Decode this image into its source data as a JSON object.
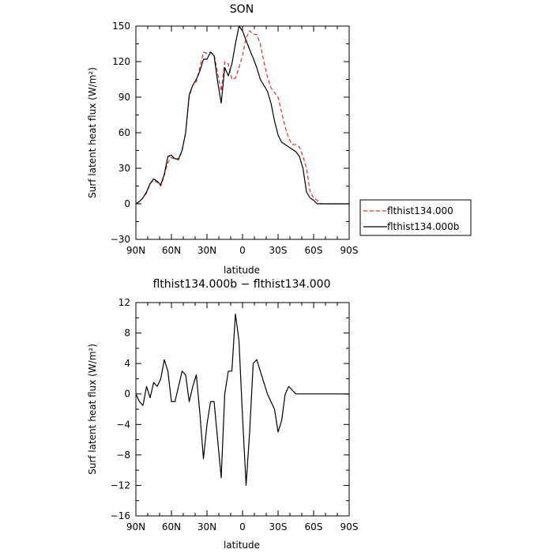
{
  "chart_data": [
    {
      "type": "line",
      "title": "SON",
      "xlabel": "latitude",
      "ylabel": "Surf latent heat flux (W/m²)",
      "xlim": [
        90,
        -90
      ],
      "ylim": [
        -30,
        150
      ],
      "x_ticks": [
        90,
        60,
        30,
        0,
        -30,
        -60,
        -90
      ],
      "x_tick_labels": [
        "90N",
        "60N",
        "30N",
        "0",
        "30S",
        "60S",
        "90S"
      ],
      "y_ticks": [
        -30,
        0,
        30,
        60,
        90,
        120,
        150
      ],
      "y_tick_labels": [
        "−30",
        "0",
        "30",
        "60",
        "90",
        "120",
        "150"
      ],
      "legend_position": "right",
      "colors": {
        "flthist134.000": "#e03030",
        "flthist134.000b": "#000000"
      },
      "series": [
        {
          "name": "flthist134.000",
          "style": "dashed",
          "x": [
            90,
            87,
            84,
            81,
            78,
            75,
            72,
            69,
            66,
            63,
            60,
            57,
            54,
            51,
            48,
            45,
            42,
            39,
            36,
            33,
            30,
            27,
            24,
            21,
            18,
            15,
            12,
            9,
            6,
            3,
            0,
            -3,
            -6,
            -9,
            -12,
            -15,
            -18,
            -21,
            -24,
            -27,
            -30,
            -33,
            -36,
            -39,
            -42,
            -45,
            -48,
            -51,
            -54,
            -57,
            -60,
            -63,
            -66,
            -69,
            -72,
            -75,
            -78,
            -81,
            -84,
            -87,
            -90
          ],
          "values": [
            0,
            2,
            5,
            9,
            17,
            20,
            18,
            15,
            24,
            35,
            39,
            38,
            37,
            45,
            60,
            90,
            100,
            103,
            115,
            128,
            127,
            128,
            126,
            110,
            95,
            120,
            118,
            105,
            106,
            115,
            125,
            140,
            146,
            143,
            143,
            135,
            120,
            107,
            98,
            94,
            90,
            77,
            65,
            55,
            50,
            50,
            48,
            40,
            30,
            10,
            5,
            3,
            0,
            0,
            0,
            0,
            0,
            0,
            0,
            0,
            0
          ]
        },
        {
          "name": "flthist134.000b",
          "style": "solid",
          "x": [
            90,
            87,
            84,
            81,
            78,
            75,
            72,
            69,
            66,
            63,
            60,
            57,
            54,
            51,
            48,
            45,
            42,
            39,
            36,
            33,
            30,
            27,
            24,
            21,
            18,
            15,
            12,
            9,
            6,
            3,
            0,
            -3,
            -6,
            -9,
            -12,
            -15,
            -18,
            -21,
            -24,
            -27,
            -30,
            -33,
            -36,
            -39,
            -42,
            -45,
            -48,
            -51,
            -54,
            -57,
            -60,
            -63,
            -66,
            -69,
            -72,
            -75,
            -78,
            -81,
            -84,
            -87,
            -90
          ],
          "values": [
            0,
            2,
            5,
            10,
            17,
            21,
            19,
            16,
            25,
            40,
            41,
            38,
            38,
            45,
            60,
            92,
            100,
            105,
            112,
            122,
            122,
            128,
            125,
            103,
            85,
            115,
            108,
            118,
            135,
            150,
            146,
            138,
            130,
            123,
            115,
            105,
            100,
            95,
            85,
            70,
            58,
            52,
            50,
            48,
            46,
            44,
            40,
            30,
            10,
            5,
            3,
            0,
            0,
            0,
            0,
            0,
            0,
            0,
            0,
            0,
            0
          ]
        }
      ]
    },
    {
      "type": "line",
      "title": "flthist134.000b − flthist134.000",
      "xlabel": "latitude",
      "ylabel": "Surf latent heat flux (W/m²)",
      "xlim": [
        90,
        -90
      ],
      "ylim": [
        -16,
        12
      ],
      "x_ticks": [
        90,
        60,
        30,
        0,
        -30,
        -60,
        -90
      ],
      "x_tick_labels": [
        "90N",
        "60N",
        "30N",
        "0",
        "30S",
        "60S",
        "90S"
      ],
      "y_ticks": [
        -16,
        -12,
        -8,
        -4,
        0,
        4,
        8,
        12
      ],
      "y_tick_labels": [
        "−16",
        "−12",
        "−8",
        "−4",
        "0",
        "4",
        "8",
        "12"
      ],
      "colors": {
        "difference": "#000000"
      },
      "series": [
        {
          "style": "solid",
          "x": [
            90,
            87,
            84,
            81,
            78,
            75,
            72,
            69,
            66,
            63,
            60,
            57,
            54,
            51,
            48,
            45,
            42,
            39,
            36,
            33,
            30,
            27,
            24,
            21,
            18,
            15,
            12,
            9,
            6,
            3,
            0,
            -3,
            -6,
            -9,
            -12,
            -15,
            -18,
            -21,
            -24,
            -27,
            -30,
            -33,
            -36,
            -39,
            -42,
            -45,
            -48,
            -51,
            -54,
            -57,
            -60,
            -63,
            -66,
            -69,
            -72,
            -75,
            -78,
            -81,
            -84,
            -87,
            -90
          ],
          "values": [
            0,
            -1,
            -1.5,
            1,
            -0.5,
            1.5,
            1,
            2,
            4.5,
            3,
            -1,
            -1,
            1,
            3,
            2.5,
            -1,
            1,
            2.5,
            -2.5,
            -8.5,
            -4,
            -1,
            -1,
            -6,
            -11,
            0,
            3,
            3,
            10.5,
            7,
            -3,
            -12,
            -5,
            4,
            4.5,
            3,
            1.5,
            0,
            -1,
            -2,
            -5,
            -3.5,
            0,
            1,
            0.5,
            0,
            0,
            0,
            0,
            0,
            0,
            0,
            0,
            0,
            0,
            0,
            0,
            0,
            0,
            0,
            0
          ]
        }
      ]
    }
  ],
  "legend": {
    "items": [
      {
        "label": "flthist134.000",
        "color": "#e03030",
        "dash": true
      },
      {
        "label": "flthist134.000b",
        "color": "#000000",
        "dash": false
      }
    ]
  }
}
